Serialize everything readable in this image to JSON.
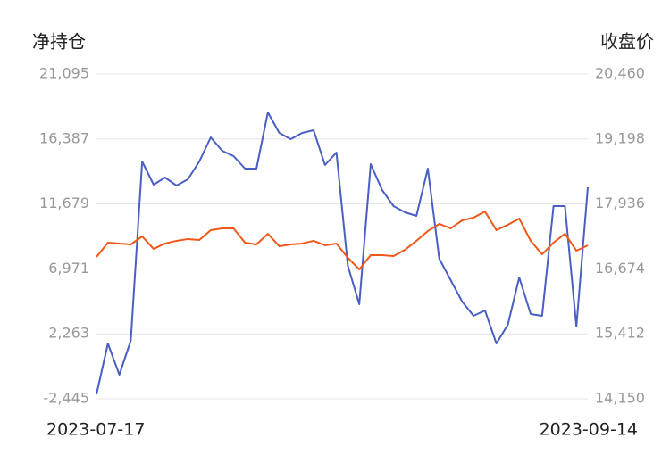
{
  "chart_data": {
    "type": "line",
    "y_title": "净持仓",
    "y2_title": "收盘价",
    "categories": [
      "2023-07-17",
      null,
      null,
      null,
      null,
      null,
      null,
      null,
      null,
      null,
      null,
      null,
      null,
      null,
      null,
      null,
      null,
      null,
      null,
      null,
      null,
      null,
      null,
      null,
      null,
      null,
      null,
      null,
      null,
      null,
      null,
      null,
      null,
      null,
      null,
      null,
      null,
      null,
      null,
      null,
      null,
      null,
      null,
      "2023-09-14"
    ],
    "ylim": [
      -2445,
      21095
    ],
    "yticks": [
      {
        "value": -2445,
        "label": "-2,445"
      },
      {
        "value": 2263,
        "label": "2,263"
      },
      {
        "value": 6971,
        "label": "6,971"
      },
      {
        "value": 11679,
        "label": "11,679"
      },
      {
        "value": 16387,
        "label": "16,387"
      },
      {
        "value": 21095,
        "label": "21,095"
      }
    ],
    "y2lim": [
      14150,
      20460
    ],
    "y2ticks": [
      {
        "value": 14150,
        "label": "14,150"
      },
      {
        "value": 15412,
        "label": "15,412"
      },
      {
        "value": 16674,
        "label": "16,674"
      },
      {
        "value": 17936,
        "label": "17,936"
      },
      {
        "value": 19198,
        "label": "19,198"
      },
      {
        "value": 20460,
        "label": "20,460"
      }
    ],
    "grid": true,
    "series": [
      {
        "color": "#4a5fc1",
        "values": [
          -2122,
          1565,
          -699,
          1760,
          14757,
          13076,
          13593,
          13011,
          13464,
          14757,
          16503,
          15533,
          15145,
          14240,
          14240,
          18314,
          16827,
          16374,
          16827,
          17021,
          14499,
          15404,
          7191,
          4410,
          14563,
          12688,
          11524,
          11071,
          10813,
          14240,
          7708,
          6156,
          4604,
          3570,
          3958,
          1565,
          2923,
          6351,
          3699,
          3570,
          11524,
          11524,
          2793,
          12882
        ]
      },
      {
        "color": "#f0581a",
        "axis": "y2",
        "values": [
          16906,
          17184,
          17167,
          17149,
          17305,
          17063,
          17167,
          17219,
          17254,
          17236,
          17427,
          17461,
          17461,
          17184,
          17149,
          17357,
          17114,
          17149,
          17167,
          17219,
          17132,
          17167,
          16889,
          16664,
          16941,
          16941,
          16924,
          17045,
          17219,
          17409,
          17548,
          17461,
          17617,
          17669,
          17790,
          17427,
          17531,
          17652,
          17219,
          16958,
          17184,
          17357,
          17028,
          17132
        ]
      }
    ]
  }
}
